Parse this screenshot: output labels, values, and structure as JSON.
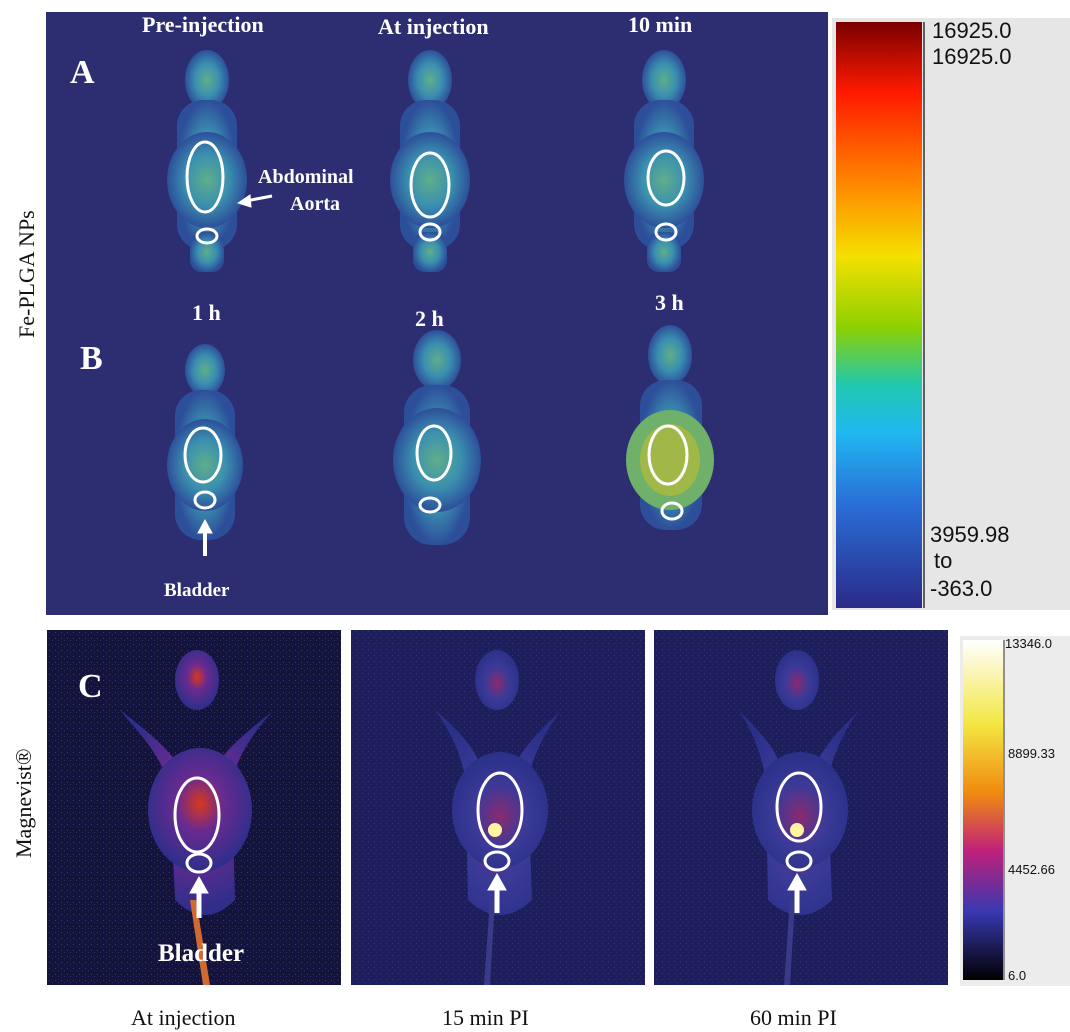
{
  "row_label_top": "Fe-PLGA NPs",
  "row_label_bottom": "Magnevist®",
  "panel_letters": {
    "a": "A",
    "b": "B",
    "c": "C"
  },
  "top_titles": [
    "Pre-injection",
    "At injection",
    "10 min",
    "1 h",
    "2 h",
    "3 h"
  ],
  "annotations": {
    "aorta_line1": "Abdominal",
    "aorta_line2": "Aorta",
    "bladder_top": "Bladder",
    "bladder_bottom": "Bladder"
  },
  "colorbar_top": {
    "max1": "16925.0",
    "max2": "16925.0",
    "low": "3959.98",
    "to": "to",
    "min": "-363.0"
  },
  "colorbar_bottom": {
    "max": "13346.0",
    "mid1": "8899.33",
    "mid2": "4452.66",
    "min": "6.0"
  },
  "captions": [
    "At injection",
    "15 min PI",
    "60 min PI"
  ],
  "colors": {
    "top_bg": "#2d2e72",
    "ellipse": "#ffffff",
    "bottom_bg": "#1c1c52"
  }
}
